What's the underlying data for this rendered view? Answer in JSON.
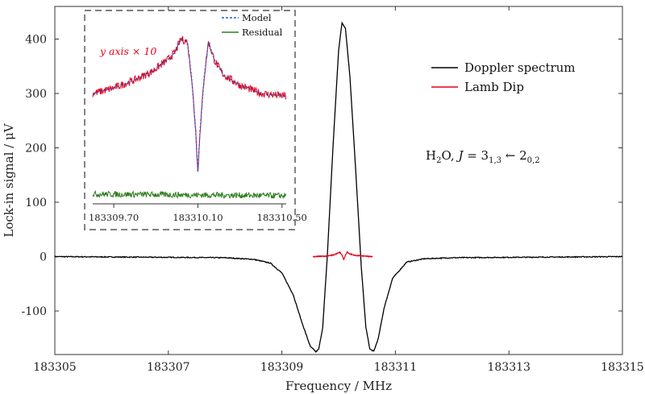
{
  "chart_data": {
    "type": "line",
    "xlabel": "Frequency / MHz",
    "ylabel": "Lock-in signal / μV",
    "xlim": [
      183305,
      183315
    ],
    "ylim": [
      -180,
      460
    ],
    "xticks": [
      "183305",
      "183307",
      "183309",
      "183311",
      "183313",
      "183315"
    ],
    "yticks": [
      "-100",
      "0",
      "100",
      "200",
      "300",
      "400"
    ],
    "grid": false,
    "legend_position": "upper-right",
    "annotation": {
      "molecule": "H",
      "molecule_sub": "2",
      "molecule_rest": "O, ",
      "j_italic": "J",
      "equals": " = 3",
      "upper_sub": "1,3",
      "arrow": " ← 2",
      "lower_sub": "0,2"
    },
    "series": [
      {
        "name": "Doppler spectrum",
        "color": "#000000",
        "x": [
          183305,
          183308,
          183308.5,
          183308.8,
          183309,
          183309.2,
          183309.35,
          183309.5,
          183309.6,
          183309.65,
          183309.72,
          183309.8,
          183309.9,
          183310.0,
          183310.06,
          183310.12,
          183310.2,
          183310.3,
          183310.4,
          183310.48,
          183310.55,
          183310.62,
          183310.7,
          183310.8,
          183310.95,
          183311.2,
          183311.5,
          183312,
          183315
        ],
        "y": [
          0,
          -2,
          -5,
          -12,
          -30,
          -70,
          -120,
          -165,
          -175,
          -170,
          -130,
          0,
          200,
          380,
          430,
          420,
          330,
          160,
          -20,
          -130,
          -170,
          -174,
          -150,
          -95,
          -40,
          -10,
          -4,
          -2,
          0
        ]
      },
      {
        "name": "Lamb Dip",
        "color": "#e3001b",
        "x": [
          183309.55,
          183309.8,
          183309.9,
          183309.98,
          183310.02,
          183310.06,
          183310.09,
          183310.12,
          183310.15,
          183310.2,
          183310.3,
          183310.6
        ],
        "y": [
          0,
          1,
          3,
          6,
          8,
          3,
          -6,
          3,
          8,
          5,
          2,
          0
        ]
      }
    ],
    "inset": {
      "xlim": [
        183309.6,
        183310.52
      ],
      "xticks": [
        "183309.70",
        "183310.10",
        "183310.50"
      ],
      "annotation": "y axis × 10",
      "legend": [
        "Model",
        "Residual"
      ],
      "series": [
        {
          "name": "Lamb Dip",
          "color": "#e3001b",
          "x": [
            183309.6,
            183309.7,
            183309.8,
            183309.88,
            183309.95,
            183309.99,
            183310.02,
            183310.05,
            183310.07,
            183310.09,
            183310.1,
            183310.11,
            183310.13,
            183310.15,
            183310.18,
            183310.22,
            183310.3,
            183310.4,
            183310.52
          ],
          "y": [
            300,
            310,
            325,
            340,
            360,
            375,
            400,
            395,
            330,
            230,
            155,
            230,
            330,
            395,
            360,
            335,
            315,
            300,
            295
          ]
        },
        {
          "name": "Model",
          "color": "#1f5fd1",
          "x": [
            183309.6,
            183309.7,
            183309.8,
            183309.88,
            183309.95,
            183309.99,
            183310.02,
            183310.05,
            183310.07,
            183310.09,
            183310.1,
            183310.11,
            183310.13,
            183310.15,
            183310.18,
            183310.22,
            183310.3,
            183310.4,
            183310.52
          ],
          "y": [
            300,
            310,
            325,
            340,
            360,
            375,
            400,
            395,
            330,
            230,
            155,
            230,
            330,
            395,
            360,
            335,
            315,
            300,
            295
          ]
        },
        {
          "name": "Residual",
          "color": "#2e7d1e",
          "x": [
            183309.6,
            183310.52
          ],
          "y": [
            115,
            112
          ]
        }
      ]
    }
  }
}
